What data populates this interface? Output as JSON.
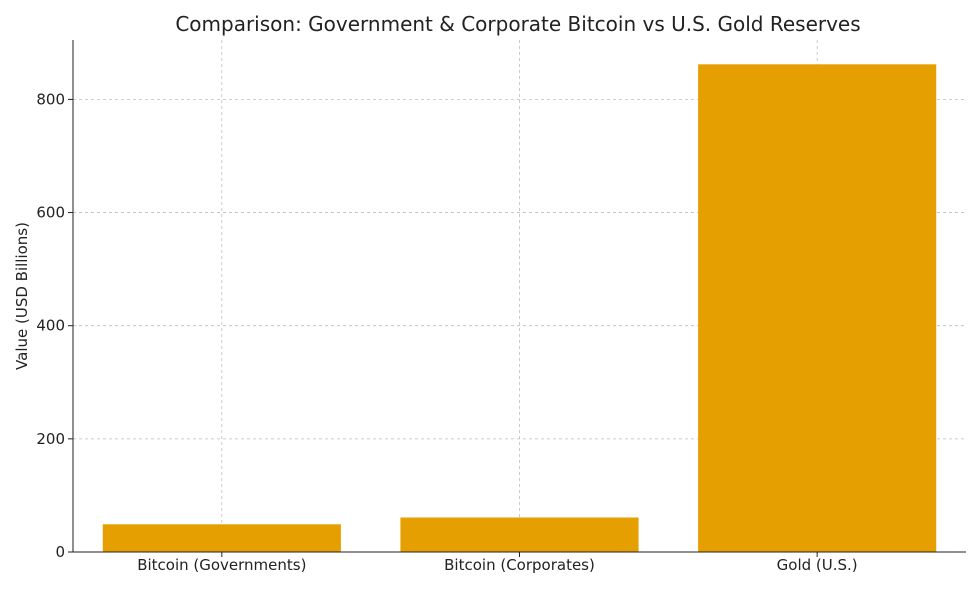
{
  "chart_data": {
    "type": "bar",
    "title": "Comparison: Government & Corporate Bitcoin vs U.S. Gold Reserves",
    "xlabel": "",
    "ylabel": "Value (USD Billions)",
    "categories": [
      "Bitcoin (Governments)",
      "Bitcoin (Corporates)",
      "Gold (U.S.)"
    ],
    "values": [
      49,
      61,
      862
    ],
    "ylim": [
      0,
      905
    ],
    "yticks": [
      0,
      200,
      400,
      600,
      800
    ],
    "grid": true,
    "bar_color": "#E69F00",
    "grid_color": "#bdbdbd"
  }
}
